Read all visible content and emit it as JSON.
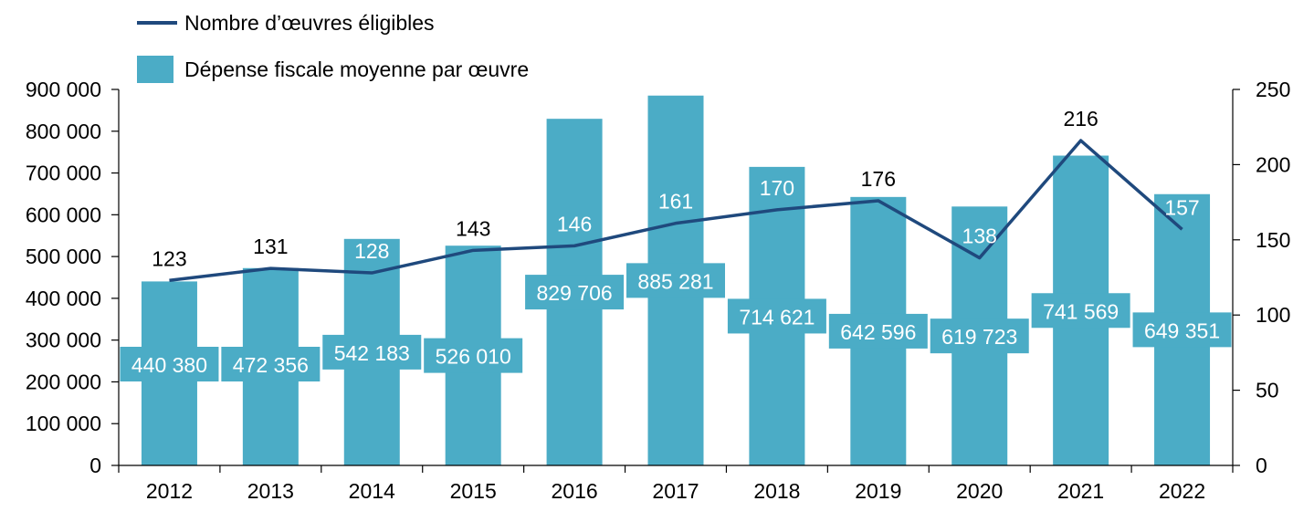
{
  "chart_data": {
    "type": "bar",
    "categories": [
      "2012",
      "2013",
      "2014",
      "2015",
      "2016",
      "2017",
      "2018",
      "2019",
      "2020",
      "2021",
      "2022"
    ],
    "series": [
      {
        "name": "Dépense fiscale moyenne par œuvre",
        "type": "bar",
        "axis": "left",
        "values": [
          440380,
          472356,
          542183,
          526010,
          829706,
          885281,
          714621,
          642596,
          619723,
          741569,
          649351
        ],
        "labels": [
          "440 380",
          "472 356",
          "542 183",
          "526 010",
          "829 706",
          "885 281",
          "714 621",
          "642 596",
          "619 723",
          "741 569",
          "649 351"
        ],
        "color": "#4BACC6"
      },
      {
        "name": "Nombre d’œuvres éligibles",
        "type": "line",
        "axis": "right",
        "values": [
          123,
          131,
          128,
          143,
          146,
          161,
          170,
          176,
          138,
          216,
          157
        ],
        "labels": [
          "123",
          "131",
          "128",
          "143",
          "146",
          "161",
          "170",
          "176",
          "138",
          "216",
          "157"
        ],
        "color": "#1F497D"
      }
    ],
    "y_left": {
      "ylim": [
        0,
        900000
      ],
      "ticks": [
        0,
        100000,
        200000,
        300000,
        400000,
        500000,
        600000,
        700000,
        800000,
        900000
      ],
      "tick_labels": [
        "0",
        "100 000",
        "200 000",
        "300 000",
        "400 000",
        "500 000",
        "600 000",
        "700 000",
        "800 000",
        "900 000"
      ]
    },
    "y_right": {
      "ylim": [
        0,
        250
      ],
      "ticks": [
        0,
        50,
        100,
        150,
        200,
        250
      ],
      "tick_labels": [
        "0",
        "50",
        "100",
        "150",
        "200",
        "250"
      ]
    },
    "grid": false,
    "legend_position": "top-left"
  }
}
